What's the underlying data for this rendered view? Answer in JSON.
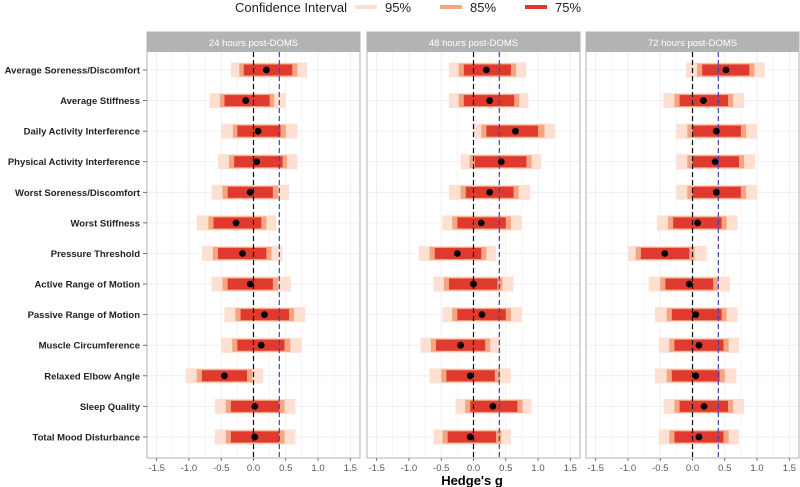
{
  "legend": {
    "title": "Confidence Interval",
    "items": [
      {
        "label": "95%",
        "color": "#fde0d2"
      },
      {
        "label": "85%",
        "color": "#f4a582"
      },
      {
        "label": "75%",
        "color": "#e03a2f"
      }
    ]
  },
  "chart_data": {
    "type": "forest",
    "xlabel": "Hedge's g",
    "xlim": [
      -1.65,
      1.65
    ],
    "xticks": [
      "-1.5",
      "-1.0",
      "-0.5",
      "0.0",
      "0.5",
      "1.0",
      "1.5"
    ],
    "reference_lines": [
      {
        "x": 0.0,
        "style": "dashed",
        "color": "#000000"
      },
      {
        "x": 0.4,
        "style": "dashed",
        "color": "#3f3fbf"
      }
    ],
    "grid": true,
    "legend_position": "top",
    "categories": [
      "Average Soreness/Discomfort",
      "Average Stiffness",
      "Daily Activity Interference",
      "Physical Activity Interference",
      "Worst Soreness/Discomfort",
      "Worst Stiffness",
      "Pressure Threshold",
      "Active Range of Motion",
      "Passive Range of Motion",
      "Muscle Circumference",
      "Relaxed Elbow Angle",
      "Sleep Quality",
      "Total Mood Disturbance"
    ],
    "panels": [
      {
        "title": "24 hours post-DOMS",
        "estimates": [
          0.2,
          -0.12,
          0.07,
          0.05,
          -0.05,
          -0.27,
          -0.17,
          -0.05,
          0.17,
          0.12,
          -0.45,
          0.02,
          0.02
        ],
        "ci75": [
          [
            -0.15,
            0.6
          ],
          [
            -0.45,
            0.25
          ],
          [
            -0.25,
            0.42
          ],
          [
            -0.3,
            0.45
          ],
          [
            -0.4,
            0.3
          ],
          [
            -0.62,
            0.12
          ],
          [
            -0.55,
            0.2
          ],
          [
            -0.4,
            0.3
          ],
          [
            -0.2,
            0.55
          ],
          [
            -0.25,
            0.48
          ],
          [
            -0.8,
            -0.1
          ],
          [
            -0.35,
            0.4
          ],
          [
            -0.35,
            0.4
          ]
        ],
        "ci85": [
          [
            -0.22,
            0.68
          ],
          [
            -0.52,
            0.32
          ],
          [
            -0.32,
            0.5
          ],
          [
            -0.38,
            0.52
          ],
          [
            -0.48,
            0.38
          ],
          [
            -0.7,
            0.2
          ],
          [
            -0.63,
            0.28
          ],
          [
            -0.48,
            0.38
          ],
          [
            -0.28,
            0.63
          ],
          [
            -0.33,
            0.57
          ],
          [
            -0.88,
            -0.02
          ],
          [
            -0.43,
            0.48
          ],
          [
            -0.43,
            0.48
          ]
        ],
        "ci95": [
          [
            -0.35,
            0.83
          ],
          [
            -0.68,
            0.5
          ],
          [
            -0.5,
            0.68
          ],
          [
            -0.55,
            0.68
          ],
          [
            -0.65,
            0.55
          ],
          [
            -0.88,
            0.35
          ],
          [
            -0.8,
            0.45
          ],
          [
            -0.65,
            0.58
          ],
          [
            -0.45,
            0.8
          ],
          [
            -0.5,
            0.75
          ],
          [
            -1.05,
            0.15
          ],
          [
            -0.6,
            0.65
          ],
          [
            -0.6,
            0.65
          ]
        ]
      },
      {
        "title": "48 hours post-DOMS",
        "estimates": [
          0.2,
          0.25,
          0.65,
          0.43,
          0.25,
          0.12,
          -0.25,
          0.0,
          0.13,
          -0.2,
          -0.05,
          0.3,
          -0.05
        ],
        "ci75": [
          [
            -0.15,
            0.58
          ],
          [
            -0.15,
            0.63
          ],
          [
            0.2,
            1.0
          ],
          [
            0.02,
            0.82
          ],
          [
            -0.12,
            0.62
          ],
          [
            -0.25,
            0.5
          ],
          [
            -0.6,
            0.12
          ],
          [
            -0.38,
            0.37
          ],
          [
            -0.25,
            0.5
          ],
          [
            -0.58,
            0.18
          ],
          [
            -0.42,
            0.33
          ],
          [
            -0.05,
            0.68
          ],
          [
            -0.4,
            0.35
          ]
        ],
        "ci85": [
          [
            -0.23,
            0.66
          ],
          [
            -0.23,
            0.71
          ],
          [
            0.12,
            1.1
          ],
          [
            -0.06,
            0.9
          ],
          [
            -0.2,
            0.7
          ],
          [
            -0.33,
            0.58
          ],
          [
            -0.68,
            0.2
          ],
          [
            -0.46,
            0.45
          ],
          [
            -0.33,
            0.58
          ],
          [
            -0.66,
            0.26
          ],
          [
            -0.5,
            0.41
          ],
          [
            -0.13,
            0.76
          ],
          [
            -0.48,
            0.43
          ]
        ],
        "ci95": [
          [
            -0.38,
            0.82
          ],
          [
            -0.38,
            0.85
          ],
          [
            0.0,
            1.27
          ],
          [
            -0.2,
            1.05
          ],
          [
            -0.38,
            0.88
          ],
          [
            -0.48,
            0.75
          ],
          [
            -0.85,
            0.35
          ],
          [
            -0.62,
            0.62
          ],
          [
            -0.48,
            0.75
          ],
          [
            -0.82,
            0.42
          ],
          [
            -0.68,
            0.58
          ],
          [
            -0.28,
            0.9
          ],
          [
            -0.62,
            0.58
          ]
        ]
      },
      {
        "title": "72 hours post-DOMS",
        "estimates": [
          0.52,
          0.17,
          0.37,
          0.35,
          0.37,
          0.08,
          -0.43,
          -0.05,
          0.05,
          0.1,
          0.05,
          0.18,
          0.1
        ],
        "ci75": [
          [
            0.15,
            0.88
          ],
          [
            -0.2,
            0.55
          ],
          [
            0.0,
            0.75
          ],
          [
            0.0,
            0.72
          ],
          [
            0.0,
            0.75
          ],
          [
            -0.3,
            0.45
          ],
          [
            -0.8,
            -0.05
          ],
          [
            -0.42,
            0.32
          ],
          [
            -0.32,
            0.45
          ],
          [
            -0.28,
            0.48
          ],
          [
            -0.32,
            0.42
          ],
          [
            -0.2,
            0.55
          ],
          [
            -0.28,
            0.48
          ]
        ],
        "ci85": [
          [
            0.07,
            0.96
          ],
          [
            -0.28,
            0.63
          ],
          [
            -0.08,
            0.83
          ],
          [
            -0.08,
            0.8
          ],
          [
            -0.08,
            0.83
          ],
          [
            -0.38,
            0.53
          ],
          [
            -0.88,
            0.03
          ],
          [
            -0.5,
            0.4
          ],
          [
            -0.4,
            0.53
          ],
          [
            -0.36,
            0.56
          ],
          [
            -0.4,
            0.5
          ],
          [
            -0.28,
            0.63
          ],
          [
            -0.36,
            0.56
          ]
        ],
        "ci95": [
          [
            -0.1,
            1.12
          ],
          [
            -0.45,
            0.8
          ],
          [
            -0.25,
            1.0
          ],
          [
            -0.25,
            0.97
          ],
          [
            -0.25,
            1.0
          ],
          [
            -0.55,
            0.7
          ],
          [
            -1.0,
            0.22
          ],
          [
            -0.68,
            0.58
          ],
          [
            -0.58,
            0.7
          ],
          [
            -0.52,
            0.72
          ],
          [
            -0.58,
            0.68
          ],
          [
            -0.45,
            0.8
          ],
          [
            -0.52,
            0.72
          ]
        ]
      }
    ]
  }
}
